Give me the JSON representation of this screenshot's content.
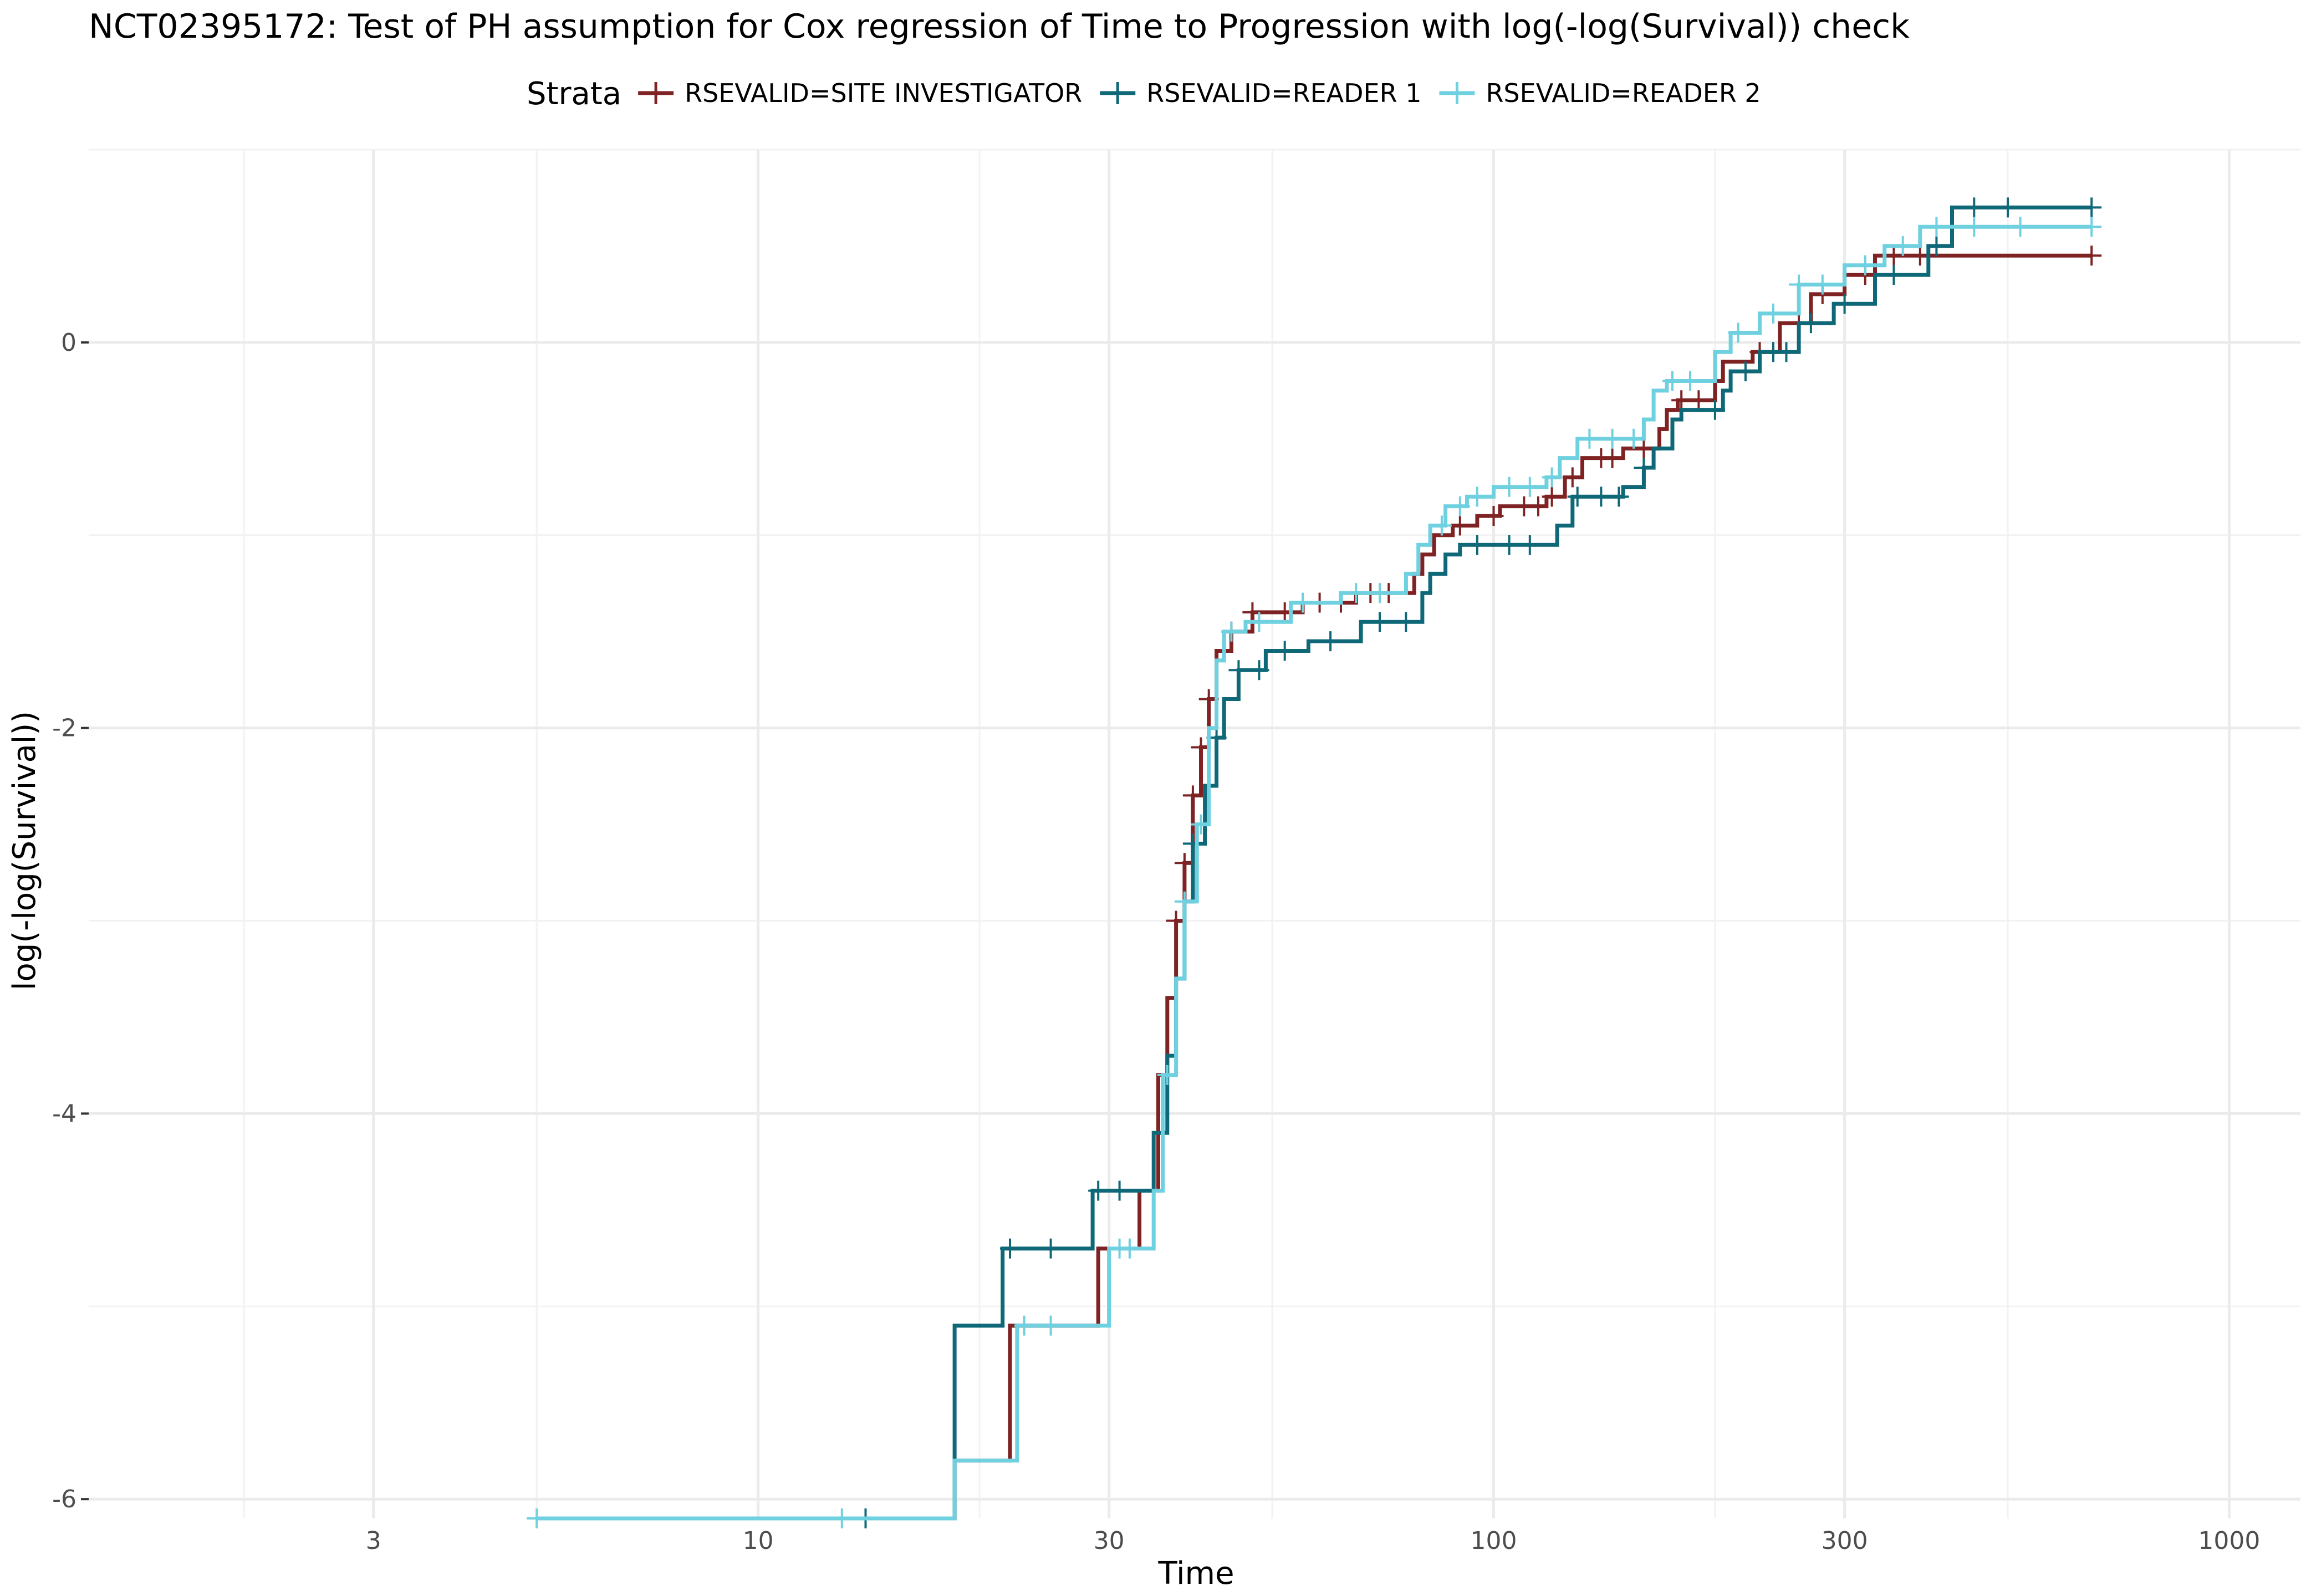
{
  "chart_data": {
    "type": "line",
    "subtype": "step",
    "title": "NCT02395172: Test of PH assumption for Cox regression of Time to Progression with log(-log(Survival)) check",
    "xlabel": "Time",
    "ylabel": "log(-log(Survival))",
    "x_scale": "log10",
    "xlim": [
      1.23,
      1250
    ],
    "ylim": [
      -6.1,
      1.0
    ],
    "x_ticks": [
      {
        "value": 3,
        "label": "3"
      },
      {
        "value": 10,
        "label": "10"
      },
      {
        "value": 30,
        "label": "30"
      },
      {
        "value": 100,
        "label": "100"
      },
      {
        "value": 300,
        "label": "300"
      },
      {
        "value": 1000,
        "label": "1000"
      }
    ],
    "y_ticks": [
      {
        "value": 0,
        "label": "0"
      },
      {
        "value": -2,
        "label": "-2"
      },
      {
        "value": -4,
        "label": "-4"
      },
      {
        "value": -6,
        "label": "-6"
      }
    ],
    "grid": true,
    "legend": {
      "title": "Strata",
      "position": "top"
    },
    "series": [
      {
        "name": "RSEVALID=SITE INVESTIGATOR",
        "color": "#7f2223",
        "points": [
          [
            5.0,
            -6.1
          ],
          [
            18.5,
            -6.1
          ],
          [
            18.5,
            -5.8
          ],
          [
            22,
            -5.8
          ],
          [
            22,
            -5.1
          ],
          [
            29,
            -5.1
          ],
          [
            29,
            -4.7
          ],
          [
            33,
            -4.7
          ],
          [
            33,
            -4.4
          ],
          [
            35,
            -4.4
          ],
          [
            35,
            -3.8
          ],
          [
            36,
            -3.8
          ],
          [
            36,
            -3.4
          ],
          [
            37,
            -3.4
          ],
          [
            37,
            -3.0
          ],
          [
            38,
            -3.0
          ],
          [
            38,
            -2.7
          ],
          [
            39,
            -2.7
          ],
          [
            39,
            -2.35
          ],
          [
            40,
            -2.35
          ],
          [
            40,
            -2.1
          ],
          [
            41,
            -2.1
          ],
          [
            41,
            -1.85
          ],
          [
            42,
            -1.85
          ],
          [
            42,
            -1.6
          ],
          [
            44,
            -1.6
          ],
          [
            44,
            -1.5
          ],
          [
            47,
            -1.5
          ],
          [
            47,
            -1.4
          ],
          [
            55,
            -1.4
          ],
          [
            55,
            -1.35
          ],
          [
            65,
            -1.35
          ],
          [
            65,
            -1.3
          ],
          [
            78,
            -1.3
          ],
          [
            78,
            -1.2
          ],
          [
            80,
            -1.2
          ],
          [
            80,
            -1.1
          ],
          [
            83,
            -1.1
          ],
          [
            83,
            -1.0
          ],
          [
            88,
            -1.0
          ],
          [
            88,
            -0.95
          ],
          [
            95,
            -0.95
          ],
          [
            95,
            -0.9
          ],
          [
            102,
            -0.9
          ],
          [
            102,
            -0.85
          ],
          [
            118,
            -0.85
          ],
          [
            118,
            -0.8
          ],
          [
            125,
            -0.8
          ],
          [
            125,
            -0.7
          ],
          [
            132,
            -0.7
          ],
          [
            132,
            -0.6
          ],
          [
            150,
            -0.6
          ],
          [
            150,
            -0.55
          ],
          [
            168,
            -0.55
          ],
          [
            168,
            -0.45
          ],
          [
            172,
            -0.45
          ],
          [
            172,
            -0.35
          ],
          [
            178,
            -0.35
          ],
          [
            178,
            -0.3
          ],
          [
            200,
            -0.3
          ],
          [
            200,
            -0.2
          ],
          [
            205,
            -0.2
          ],
          [
            205,
            -0.1
          ],
          [
            225,
            -0.1
          ],
          [
            225,
            -0.05
          ],
          [
            245,
            -0.05
          ],
          [
            245,
            0.1
          ],
          [
            270,
            0.1
          ],
          [
            270,
            0.25
          ],
          [
            300,
            0.25
          ],
          [
            300,
            0.35
          ],
          [
            330,
            0.35
          ],
          [
            330,
            0.45
          ],
          [
            650,
            0.45
          ]
        ],
        "censor_x": [
          37,
          38,
          39,
          40,
          41,
          44,
          47,
          52,
          58,
          62,
          68,
          72,
          90,
          100,
          110,
          115,
          120,
          128,
          140,
          145,
          160,
          180,
          190,
          230,
          260,
          280,
          320,
          350,
          380,
          650
        ]
      },
      {
        "name": "RSEVALID=READER 1",
        "color": "#0e6877",
        "points": [
          [
            5.0,
            -6.1
          ],
          [
            18.5,
            -6.1
          ],
          [
            18.5,
            -5.1
          ],
          [
            21.5,
            -5.1
          ],
          [
            21.5,
            -4.7
          ],
          [
            28.5,
            -4.7
          ],
          [
            28.5,
            -4.4
          ],
          [
            34.5,
            -4.4
          ],
          [
            34.5,
            -4.1
          ],
          [
            36,
            -4.1
          ],
          [
            36,
            -3.7
          ],
          [
            37,
            -3.7
          ],
          [
            37,
            -3.3
          ],
          [
            38,
            -3.3
          ],
          [
            38,
            -2.9
          ],
          [
            39,
            -2.9
          ],
          [
            39,
            -2.6
          ],
          [
            40.5,
            -2.6
          ],
          [
            40.5,
            -2.3
          ],
          [
            42,
            -2.3
          ],
          [
            42,
            -2.05
          ],
          [
            43,
            -2.05
          ],
          [
            43,
            -1.85
          ],
          [
            45,
            -1.85
          ],
          [
            45,
            -1.7
          ],
          [
            49,
            -1.7
          ],
          [
            49,
            -1.6
          ],
          [
            56,
            -1.6
          ],
          [
            56,
            -1.55
          ],
          [
            66,
            -1.55
          ],
          [
            66,
            -1.45
          ],
          [
            80,
            -1.45
          ],
          [
            80,
            -1.3
          ],
          [
            82,
            -1.3
          ],
          [
            82,
            -1.2
          ],
          [
            86,
            -1.2
          ],
          [
            86,
            -1.1
          ],
          [
            90,
            -1.1
          ],
          [
            90,
            -1.05
          ],
          [
            122,
            -1.05
          ],
          [
            122,
            -0.95
          ],
          [
            128,
            -0.95
          ],
          [
            128,
            -0.8
          ],
          [
            150,
            -0.8
          ],
          [
            150,
            -0.75
          ],
          [
            160,
            -0.75
          ],
          [
            160,
            -0.65
          ],
          [
            165,
            -0.65
          ],
          [
            165,
            -0.55
          ],
          [
            175,
            -0.55
          ],
          [
            175,
            -0.4
          ],
          [
            180,
            -0.4
          ],
          [
            180,
            -0.35
          ],
          [
            205,
            -0.35
          ],
          [
            205,
            -0.25
          ],
          [
            210,
            -0.25
          ],
          [
            210,
            -0.15
          ],
          [
            230,
            -0.15
          ],
          [
            230,
            -0.05
          ],
          [
            260,
            -0.05
          ],
          [
            260,
            0.1
          ],
          [
            290,
            0.1
          ],
          [
            290,
            0.2
          ],
          [
            330,
            0.2
          ],
          [
            330,
            0.35
          ],
          [
            390,
            0.35
          ],
          [
            390,
            0.5
          ],
          [
            420,
            0.5
          ],
          [
            420,
            0.7
          ],
          [
            650,
            0.7
          ]
        ],
        "censor_x": [
          14,
          22,
          25,
          29,
          31,
          39,
          42,
          45,
          48,
          52,
          60,
          70,
          76,
          95,
          105,
          112,
          130,
          140,
          148,
          160,
          200,
          220,
          240,
          250,
          270,
          300,
          350,
          400,
          450,
          500,
          650
        ]
      },
      {
        "name": "RSEVALID=READER 2",
        "color": "#6fd0e0",
        "points": [
          [
            5.0,
            -6.1
          ],
          [
            18.5,
            -6.1
          ],
          [
            18.5,
            -5.8
          ],
          [
            22.5,
            -5.8
          ],
          [
            22.5,
            -5.1
          ],
          [
            30,
            -5.1
          ],
          [
            30,
            -4.7
          ],
          [
            34.5,
            -4.7
          ],
          [
            34.5,
            -4.4
          ],
          [
            35.5,
            -4.4
          ],
          [
            35.5,
            -3.8
          ],
          [
            37,
            -3.8
          ],
          [
            37,
            -3.3
          ],
          [
            38,
            -3.3
          ],
          [
            38,
            -2.9
          ],
          [
            39.5,
            -2.9
          ],
          [
            39.5,
            -2.5
          ],
          [
            41,
            -2.5
          ],
          [
            41,
            -2.0
          ],
          [
            42,
            -2.0
          ],
          [
            42,
            -1.65
          ],
          [
            43,
            -1.65
          ],
          [
            43,
            -1.5
          ],
          [
            46,
            -1.5
          ],
          [
            46,
            -1.45
          ],
          [
            53,
            -1.45
          ],
          [
            53,
            -1.35
          ],
          [
            62,
            -1.35
          ],
          [
            62,
            -1.3
          ],
          [
            76,
            -1.3
          ],
          [
            76,
            -1.2
          ],
          [
            79,
            -1.2
          ],
          [
            79,
            -1.05
          ],
          [
            82,
            -1.05
          ],
          [
            82,
            -0.95
          ],
          [
            86,
            -0.95
          ],
          [
            86,
            -0.85
          ],
          [
            92,
            -0.85
          ],
          [
            92,
            -0.8
          ],
          [
            100,
            -0.8
          ],
          [
            100,
            -0.75
          ],
          [
            118,
            -0.75
          ],
          [
            118,
            -0.7
          ],
          [
            123,
            -0.7
          ],
          [
            123,
            -0.6
          ],
          [
            130,
            -0.6
          ],
          [
            130,
            -0.5
          ],
          [
            160,
            -0.5
          ],
          [
            160,
            -0.4
          ],
          [
            165,
            -0.4
          ],
          [
            165,
            -0.25
          ],
          [
            172,
            -0.25
          ],
          [
            172,
            -0.2
          ],
          [
            200,
            -0.2
          ],
          [
            200,
            -0.05
          ],
          [
            210,
            -0.05
          ],
          [
            210,
            0.05
          ],
          [
            230,
            0.05
          ],
          [
            230,
            0.15
          ],
          [
            260,
            0.15
          ],
          [
            260,
            0.3
          ],
          [
            300,
            0.3
          ],
          [
            300,
            0.4
          ],
          [
            340,
            0.4
          ],
          [
            340,
            0.5
          ],
          [
            380,
            0.5
          ],
          [
            380,
            0.6
          ],
          [
            650,
            0.6
          ]
        ],
        "censor_x": [
          5,
          13,
          23,
          25,
          31,
          32,
          36,
          38,
          40,
          44,
          48,
          55,
          65,
          70,
          85,
          90,
          95,
          105,
          112,
          120,
          135,
          145,
          155,
          175,
          185,
          215,
          240,
          260,
          280,
          320,
          360,
          400,
          450,
          520,
          650
        ]
      }
    ]
  }
}
